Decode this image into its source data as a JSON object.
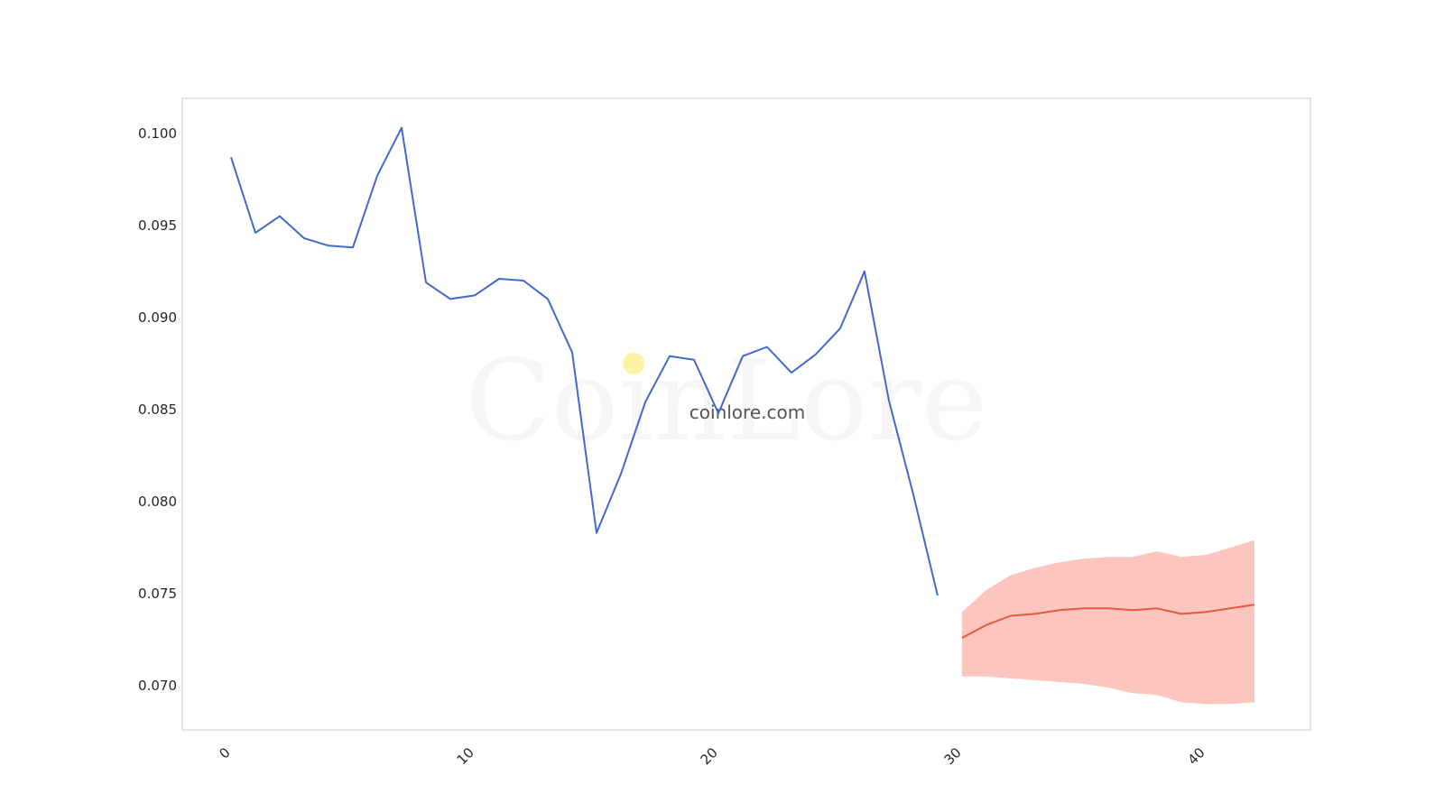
{
  "watermark": {
    "logo_text": "CoinLore",
    "site_text": "coinlore.com",
    "dot_color": "#fff4a3"
  },
  "chart_data": {
    "type": "line",
    "xlim": [
      -2,
      44.3
    ],
    "ylim": [
      0.0676,
      0.1019
    ],
    "x_ticks": [
      0,
      10,
      20,
      30,
      40
    ],
    "y_ticks": [
      0.07,
      0.075,
      0.08,
      0.085,
      0.09,
      0.095,
      0.1
    ],
    "y_tick_labels": [
      "0.070",
      "0.075",
      "0.080",
      "0.085",
      "0.090",
      "0.095",
      "0.100"
    ],
    "grid": false,
    "series": [
      {
        "color": "#4169cd",
        "x": [
          0,
          1,
          2,
          3,
          4,
          5,
          6,
          7,
          8,
          9,
          10,
          11,
          12,
          13,
          14,
          15,
          16,
          17,
          18,
          19,
          20,
          21,
          22,
          23,
          24,
          25,
          26,
          27,
          28,
          29
        ],
        "values": [
          0.0987,
          0.0946,
          0.0955,
          0.0943,
          0.0939,
          0.0938,
          0.0977,
          0.1003,
          0.0919,
          0.091,
          0.0912,
          0.0921,
          0.092,
          0.091,
          0.0881,
          0.0783,
          0.0815,
          0.0854,
          0.0879,
          0.0877,
          0.0848,
          0.0879,
          0.0884,
          0.087,
          0.088,
          0.0894,
          0.0925,
          0.0855,
          0.0804,
          0.0749
        ]
      },
      {
        "color": "#e8573c",
        "band_color": "#fcc5bd",
        "x": [
          30,
          31,
          32,
          33,
          34,
          35,
          36,
          37,
          38,
          39,
          40,
          41,
          42
        ],
        "values": [
          0.0726,
          0.0733,
          0.0738,
          0.0739,
          0.0741,
          0.0742,
          0.0742,
          0.0741,
          0.0742,
          0.0739,
          0.074,
          0.0742,
          0.0744
        ],
        "upper": [
          0.074,
          0.0752,
          0.076,
          0.0764,
          0.0767,
          0.0769,
          0.077,
          0.077,
          0.0773,
          0.077,
          0.0771,
          0.0775,
          0.0779
        ],
        "lower": [
          0.0705,
          0.0705,
          0.0704,
          0.0703,
          0.0702,
          0.0701,
          0.0699,
          0.0696,
          0.0695,
          0.0691,
          0.069,
          0.069,
          0.0691
        ]
      }
    ]
  }
}
